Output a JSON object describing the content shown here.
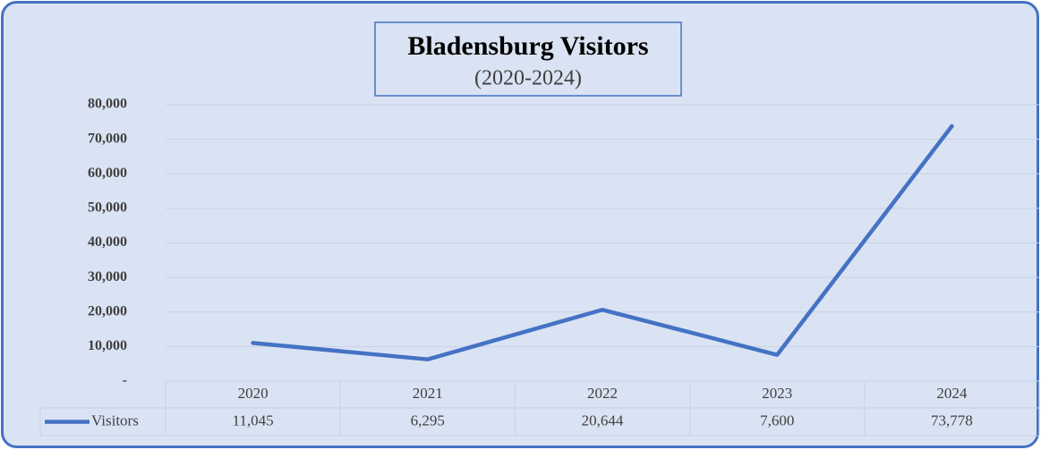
{
  "chart_data": {
    "type": "line",
    "title": "Bladensburg Visitors",
    "subtitle": "(2020-2024)",
    "categories": [
      "2020",
      "2021",
      "2022",
      "2023",
      "2024"
    ],
    "series": [
      {
        "name": "Visitors",
        "color": "#4472c4",
        "values": [
          11045,
          6295,
          20644,
          7600,
          73778
        ],
        "value_labels": [
          "11,045",
          "6,295",
          "20,644",
          "7,600",
          "73,778"
        ]
      }
    ],
    "ylim": [
      0,
      80000
    ],
    "yticks": [
      {
        "value": 0,
        "label": "-"
      },
      {
        "value": 10000,
        "label": "10,000"
      },
      {
        "value": 20000,
        "label": "20,000"
      },
      {
        "value": 30000,
        "label": "30,000"
      },
      {
        "value": 40000,
        "label": "40,000"
      },
      {
        "value": 50000,
        "label": "50,000"
      },
      {
        "value": 60000,
        "label": "60,000"
      },
      {
        "value": 70000,
        "label": "70,000"
      },
      {
        "value": 80000,
        "label": "80,000"
      }
    ],
    "grid": true,
    "legend": "data-table"
  }
}
